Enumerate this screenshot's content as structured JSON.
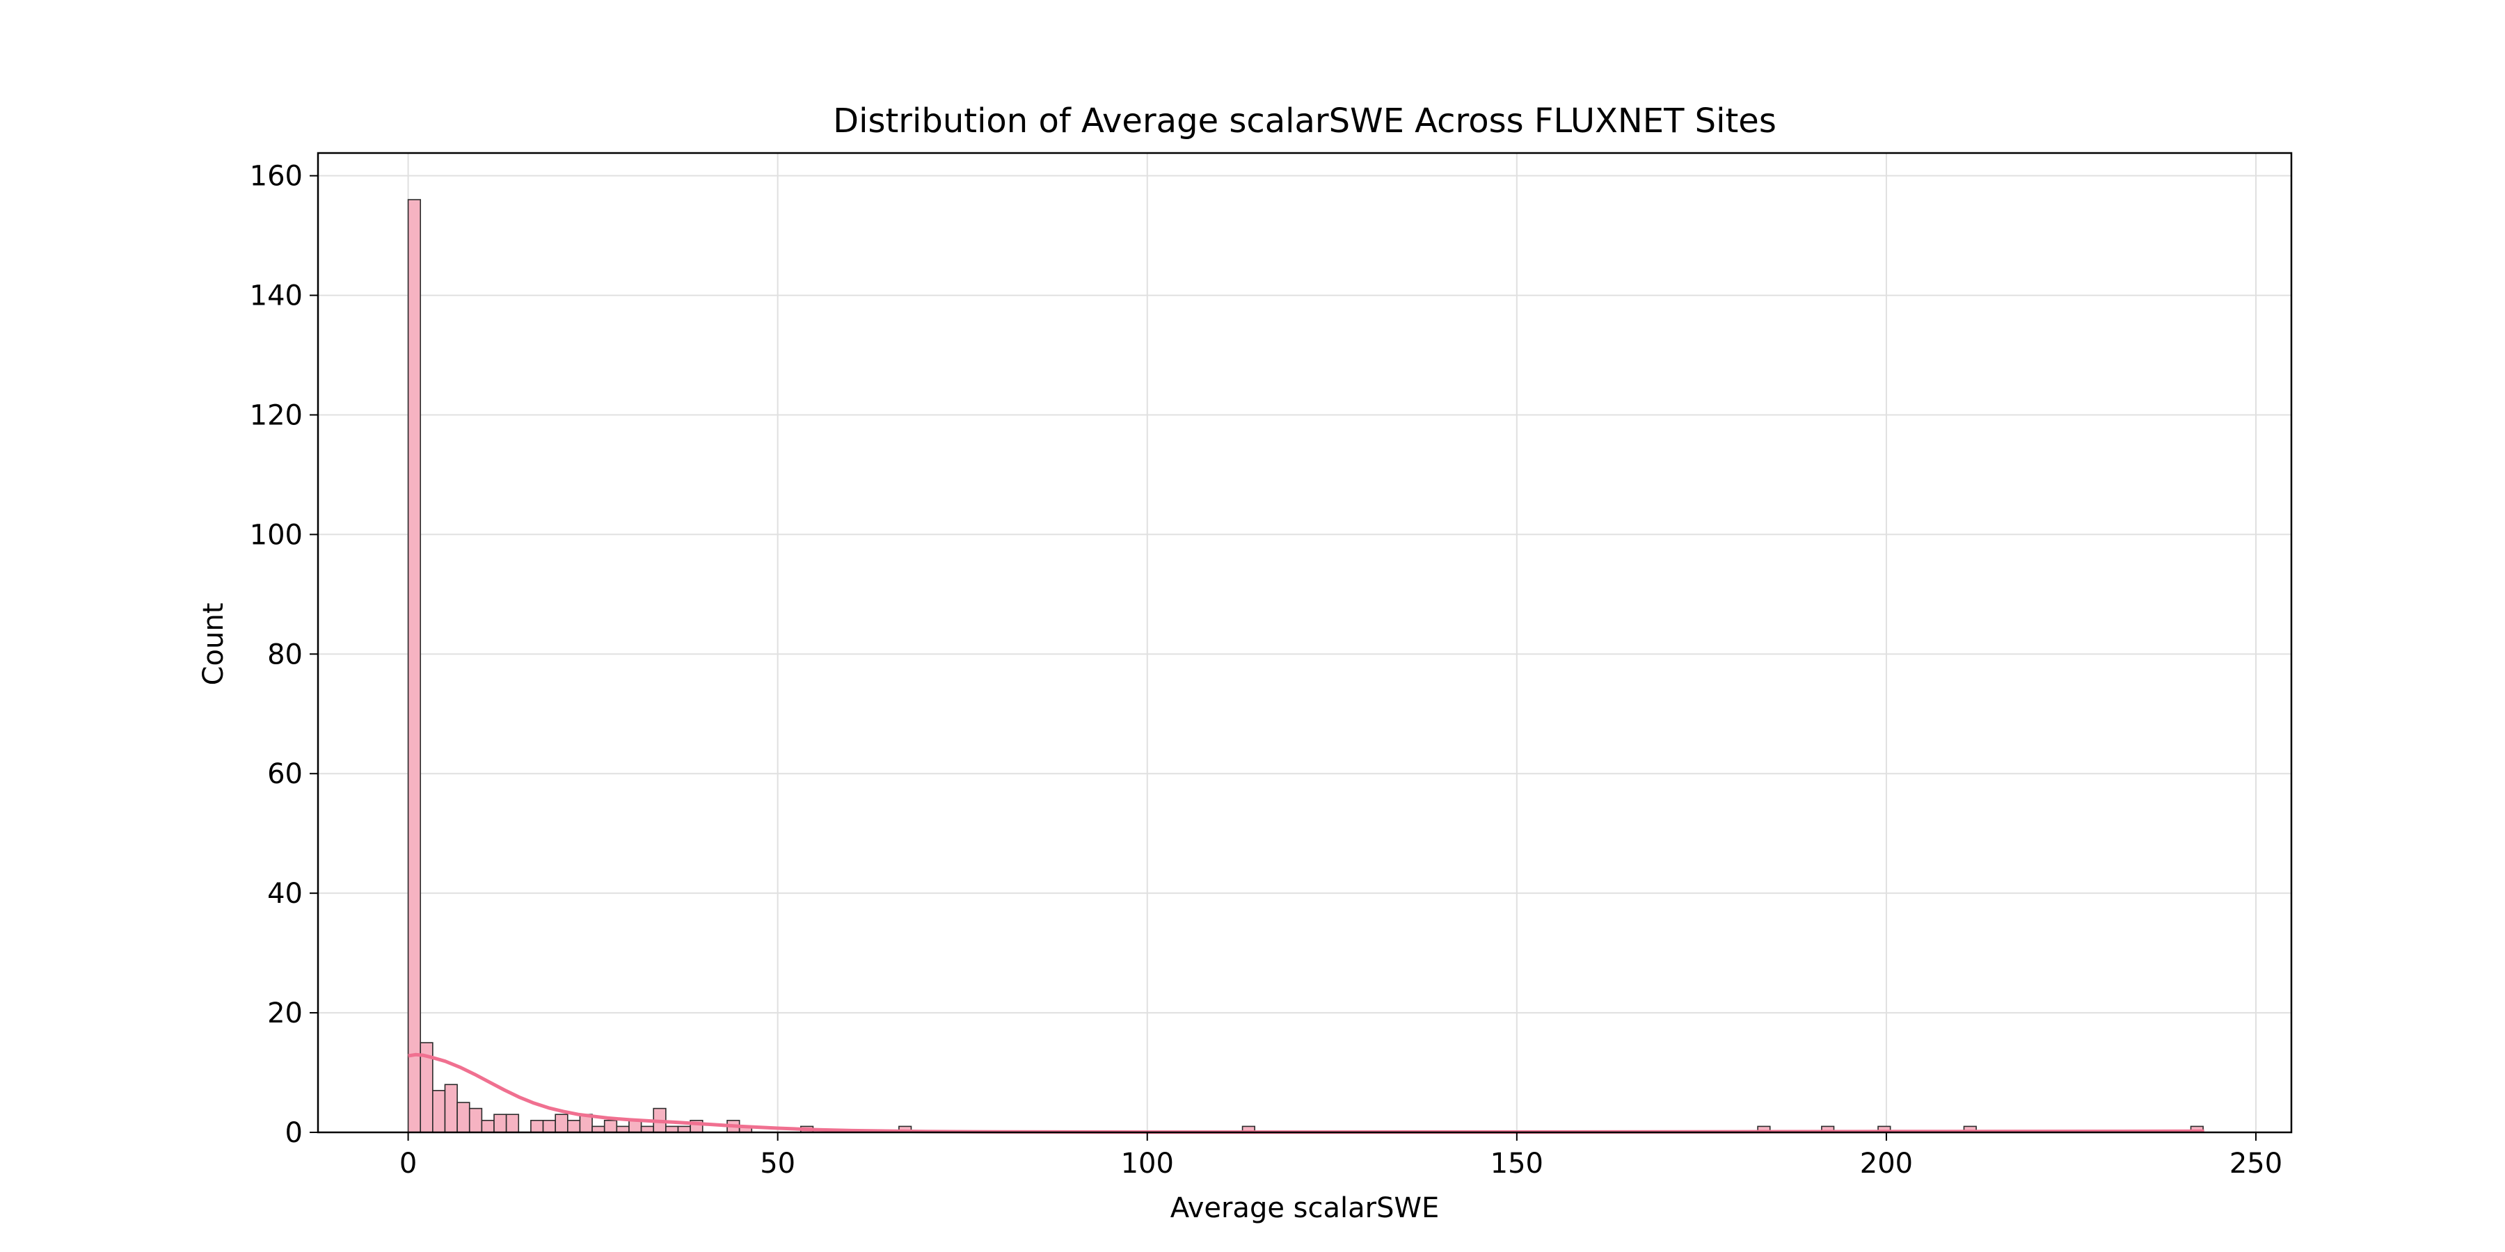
{
  "chart_data": {
    "type": "bar",
    "title": "Distribution of Average scalarSWE Across FLUXNET Sites",
    "xlabel": "Average scalarSWE",
    "ylabel": "Count",
    "xlim": [
      -12.2,
      254.8
    ],
    "ylim": [
      0,
      163.8
    ],
    "x_ticks": [
      0,
      50,
      100,
      150,
      200,
      250
    ],
    "y_ticks": [
      0,
      20,
      40,
      60,
      80,
      100,
      120,
      140,
      160
    ],
    "grid": true,
    "legend": "none",
    "bin_width": 1.66,
    "bin_start": 0,
    "bins": [
      {
        "x": 0.0,
        "count": 156
      },
      {
        "x": 1.66,
        "count": 15
      },
      {
        "x": 3.32,
        "count": 7
      },
      {
        "x": 4.98,
        "count": 8
      },
      {
        "x": 6.64,
        "count": 5
      },
      {
        "x": 8.3,
        "count": 4
      },
      {
        "x": 9.96,
        "count": 2
      },
      {
        "x": 11.62,
        "count": 3
      },
      {
        "x": 13.28,
        "count": 3
      },
      {
        "x": 16.6,
        "count": 2
      },
      {
        "x": 18.26,
        "count": 2
      },
      {
        "x": 19.92,
        "count": 3
      },
      {
        "x": 21.58,
        "count": 2
      },
      {
        "x": 23.24,
        "count": 3
      },
      {
        "x": 24.9,
        "count": 1
      },
      {
        "x": 26.56,
        "count": 2
      },
      {
        "x": 28.22,
        "count": 1
      },
      {
        "x": 29.88,
        "count": 2
      },
      {
        "x": 31.54,
        "count": 1
      },
      {
        "x": 33.2,
        "count": 4
      },
      {
        "x": 34.86,
        "count": 1
      },
      {
        "x": 36.52,
        "count": 1
      },
      {
        "x": 38.18,
        "count": 2
      },
      {
        "x": 43.16,
        "count": 2
      },
      {
        "x": 44.82,
        "count": 1
      },
      {
        "x": 53.12,
        "count": 1
      },
      {
        "x": 66.4,
        "count": 1
      },
      {
        "x": 112.88,
        "count": 1
      },
      {
        "x": 182.6,
        "count": 1
      },
      {
        "x": 191.24,
        "count": 1
      },
      {
        "x": 198.88,
        "count": 1
      },
      {
        "x": 210.5,
        "count": 1
      },
      {
        "x": 241.2,
        "count": 1
      }
    ],
    "kde": {
      "x": [
        0,
        1,
        2,
        3,
        5,
        7,
        9,
        11,
        13,
        15,
        17,
        19,
        21,
        23,
        25,
        27,
        30,
        33,
        36,
        40,
        45,
        50,
        55,
        60,
        70,
        80,
        100,
        120,
        150,
        180,
        200,
        220,
        243
      ],
      "y": [
        12.8,
        13.0,
        12.9,
        12.6,
        11.9,
        10.9,
        9.7,
        8.4,
        7.1,
        5.9,
        4.9,
        4.1,
        3.5,
        3.0,
        2.7,
        2.4,
        2.1,
        1.9,
        1.7,
        1.4,
        1.0,
        0.7,
        0.45,
        0.3,
        0.15,
        0.08,
        0.05,
        0.05,
        0.06,
        0.1,
        0.14,
        0.16,
        0.2
      ]
    },
    "colors": {
      "bar_fill": "#f6b3c2",
      "bar_edge": "#2b2b2b",
      "kde_line": "#f07090",
      "grid": "#e0e0e0"
    }
  }
}
